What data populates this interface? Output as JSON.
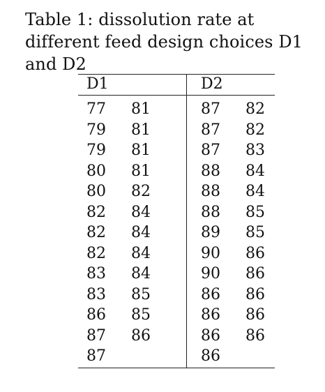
{
  "caption": "Table 1: dissolution rate at different feed design choices D1 and D2",
  "table": {
    "headers": [
      "D1",
      "D2"
    ],
    "rows": [
      {
        "d1a": "77",
        "d1b": "81",
        "d2a": "87",
        "d2b": "82"
      },
      {
        "d1a": "79",
        "d1b": "81",
        "d2a": "87",
        "d2b": "82"
      },
      {
        "d1a": "79",
        "d1b": "81",
        "d2a": "87",
        "d2b": "83"
      },
      {
        "d1a": "80",
        "d1b": "81",
        "d2a": "88",
        "d2b": "84"
      },
      {
        "d1a": "80",
        "d1b": "82",
        "d2a": "88",
        "d2b": "84"
      },
      {
        "d1a": "82",
        "d1b": "84",
        "d2a": "88",
        "d2b": "85"
      },
      {
        "d1a": "82",
        "d1b": "84",
        "d2a": "89",
        "d2b": "85"
      },
      {
        "d1a": "82",
        "d1b": "84",
        "d2a": "90",
        "d2b": "86"
      },
      {
        "d1a": "83",
        "d1b": "84",
        "d2a": "90",
        "d2b": "86"
      },
      {
        "d1a": "83",
        "d1b": "85",
        "d2a": "86",
        "d2b": "86"
      },
      {
        "d1a": "86",
        "d1b": "85",
        "d2a": "86",
        "d2b": "86"
      },
      {
        "d1a": "87",
        "d1b": "86",
        "d2a": "86",
        "d2b": "86"
      },
      {
        "d1a": "87",
        "d1b": "",
        "d2a": "86",
        "d2b": ""
      }
    ]
  }
}
